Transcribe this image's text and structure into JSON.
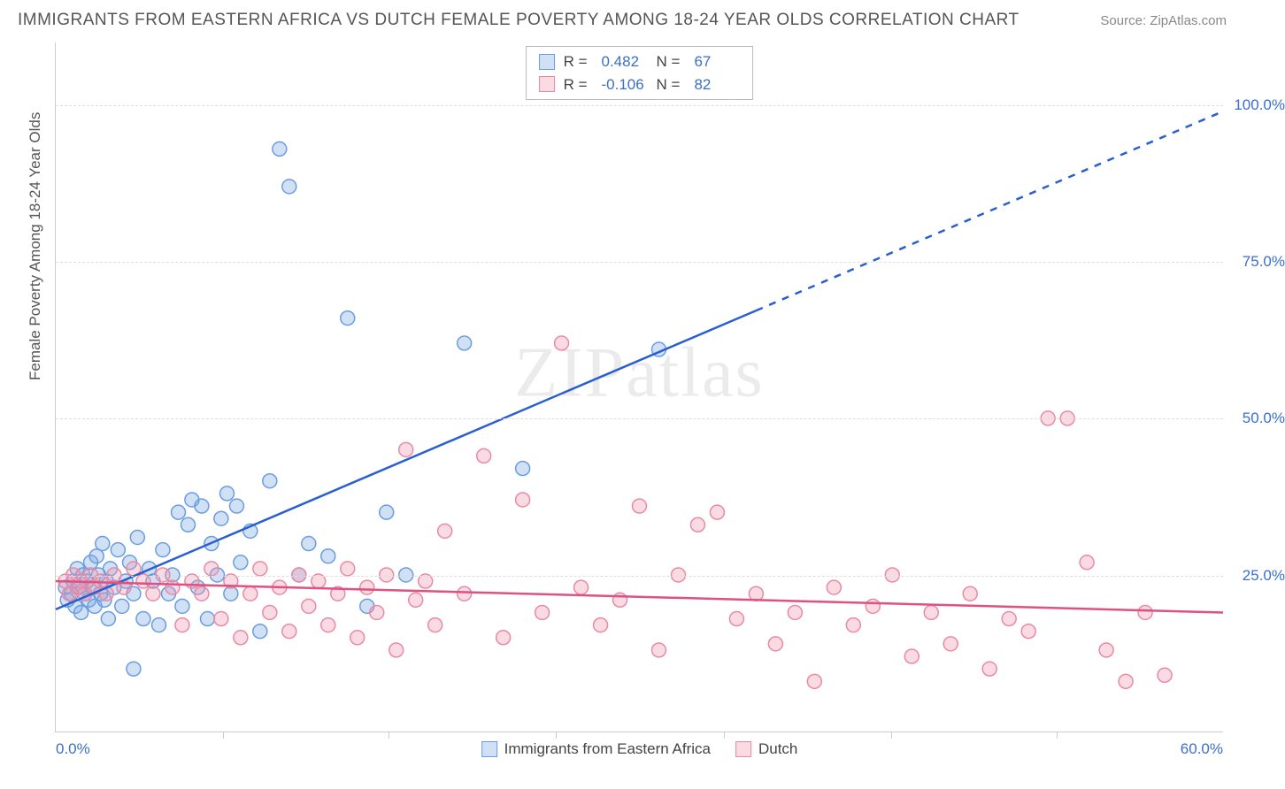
{
  "title": "IMMIGRANTS FROM EASTERN AFRICA VS DUTCH FEMALE POVERTY AMONG 18-24 YEAR OLDS CORRELATION CHART",
  "source_label": "Source: ",
  "source_name": "ZipAtlas.com",
  "y_axis_title": "Female Poverty Among 18-24 Year Olds",
  "watermark": "ZIPatlas",
  "chart": {
    "type": "scatter",
    "xlim": [
      0,
      60
    ],
    "ylim": [
      0,
      110
    ],
    "x_min_label": "0.0%",
    "x_max_label": "60.0%",
    "y_ticks": [
      25,
      50,
      75,
      100
    ],
    "y_tick_labels": [
      "25.0%",
      "50.0%",
      "75.0%",
      "100.0%"
    ],
    "x_tick_positions": [
      8.6,
      17.1,
      25.7,
      34.3,
      42.9,
      51.4
    ],
    "grid_color": "#dddddd",
    "background_color": "#ffffff",
    "axis_color": "#cccccc",
    "marker_radius": 8,
    "marker_stroke_width": 1.5,
    "line_width": 2.5,
    "series": [
      {
        "name": "Immigrants from Eastern Africa",
        "fill": "rgba(120,165,225,0.35)",
        "stroke": "#6a9de0",
        "line_color": "#2a5fd0",
        "R_label": "R =",
        "R": "0.482",
        "N_label": "N =",
        "N": "67",
        "trend": {
          "x1": 0,
          "y1": 19.5,
          "x2": 60,
          "y2": 99,
          "dash_after_x": 36
        },
        "points": [
          [
            0.5,
            23
          ],
          [
            0.6,
            21
          ],
          [
            0.8,
            22
          ],
          [
            0.9,
            24
          ],
          [
            1.0,
            20
          ],
          [
            1.1,
            26
          ],
          [
            1.2,
            23
          ],
          [
            1.3,
            19
          ],
          [
            1.4,
            25
          ],
          [
            1.5,
            22
          ],
          [
            1.6,
            24
          ],
          [
            1.7,
            21
          ],
          [
            1.8,
            27
          ],
          [
            1.9,
            23
          ],
          [
            2.0,
            20
          ],
          [
            2.1,
            28
          ],
          [
            2.2,
            25
          ],
          [
            2.3,
            22
          ],
          [
            2.4,
            30
          ],
          [
            2.5,
            21
          ],
          [
            2.6,
            24
          ],
          [
            2.7,
            18
          ],
          [
            2.8,
            26
          ],
          [
            3.0,
            23
          ],
          [
            3.2,
            29
          ],
          [
            3.4,
            20
          ],
          [
            3.6,
            24
          ],
          [
            3.8,
            27
          ],
          [
            4.0,
            22
          ],
          [
            4.2,
            31
          ],
          [
            4.5,
            18
          ],
          [
            4.8,
            26
          ],
          [
            5.0,
            24
          ],
          [
            5.3,
            17
          ],
          [
            5.5,
            29
          ],
          [
            5.8,
            22
          ],
          [
            6.0,
            25
          ],
          [
            6.3,
            35
          ],
          [
            6.5,
            20
          ],
          [
            6.8,
            33
          ],
          [
            7.0,
            37
          ],
          [
            7.3,
            23
          ],
          [
            7.5,
            36
          ],
          [
            7.8,
            18
          ],
          [
            8.0,
            30
          ],
          [
            8.3,
            25
          ],
          [
            8.5,
            34
          ],
          [
            8.8,
            38
          ],
          [
            9.0,
            22
          ],
          [
            9.3,
            36
          ],
          [
            9.5,
            27
          ],
          [
            10.0,
            32
          ],
          [
            10.5,
            16
          ],
          [
            11.0,
            40
          ],
          [
            11.5,
            93
          ],
          [
            12.0,
            87
          ],
          [
            12.5,
            25
          ],
          [
            13.0,
            30
          ],
          [
            14.0,
            28
          ],
          [
            15.0,
            66
          ],
          [
            16.0,
            20
          ],
          [
            17.0,
            35
          ],
          [
            18.0,
            25
          ],
          [
            21.0,
            62
          ],
          [
            24.0,
            42
          ],
          [
            31.0,
            61
          ],
          [
            4.0,
            10
          ]
        ]
      },
      {
        "name": "Dutch",
        "fill": "rgba(240,150,175,0.35)",
        "stroke": "#e88aa5",
        "line_color": "#e05080",
        "R_label": "R =",
        "R": "-0.106",
        "N_label": "N =",
        "N": "82",
        "trend": {
          "x1": 0,
          "y1": 24,
          "x2": 60,
          "y2": 19,
          "dash_after_x": 60
        },
        "points": [
          [
            0.5,
            24
          ],
          [
            0.7,
            22
          ],
          [
            0.9,
            25
          ],
          [
            1.1,
            23
          ],
          [
            1.3,
            24
          ],
          [
            1.5,
            22
          ],
          [
            1.8,
            25
          ],
          [
            2.0,
            23
          ],
          [
            2.3,
            24
          ],
          [
            2.6,
            22
          ],
          [
            3.0,
            25
          ],
          [
            3.5,
            23
          ],
          [
            4.0,
            26
          ],
          [
            4.5,
            24
          ],
          [
            5.0,
            22
          ],
          [
            5.5,
            25
          ],
          [
            6.0,
            23
          ],
          [
            6.5,
            17
          ],
          [
            7.0,
            24
          ],
          [
            7.5,
            22
          ],
          [
            8.0,
            26
          ],
          [
            8.5,
            18
          ],
          [
            9.0,
            24
          ],
          [
            9.5,
            15
          ],
          [
            10.0,
            22
          ],
          [
            10.5,
            26
          ],
          [
            11.0,
            19
          ],
          [
            11.5,
            23
          ],
          [
            12.0,
            16
          ],
          [
            12.5,
            25
          ],
          [
            13.0,
            20
          ],
          [
            13.5,
            24
          ],
          [
            14.0,
            17
          ],
          [
            14.5,
            22
          ],
          [
            15.0,
            26
          ],
          [
            15.5,
            15
          ],
          [
            16.0,
            23
          ],
          [
            16.5,
            19
          ],
          [
            17.0,
            25
          ],
          [
            17.5,
            13
          ],
          [
            18.0,
            45
          ],
          [
            18.5,
            21
          ],
          [
            19.0,
            24
          ],
          [
            19.5,
            17
          ],
          [
            20.0,
            32
          ],
          [
            21.0,
            22
          ],
          [
            22.0,
            44
          ],
          [
            23.0,
            15
          ],
          [
            24.0,
            37
          ],
          [
            25.0,
            19
          ],
          [
            26.0,
            62
          ],
          [
            27.0,
            23
          ],
          [
            28.0,
            17
          ],
          [
            29.0,
            21
          ],
          [
            30.0,
            36
          ],
          [
            31.0,
            13
          ],
          [
            32.0,
            25
          ],
          [
            33.0,
            33
          ],
          [
            34.0,
            35
          ],
          [
            35.0,
            18
          ],
          [
            36.0,
            22
          ],
          [
            37.0,
            14
          ],
          [
            38.0,
            19
          ],
          [
            39.0,
            8
          ],
          [
            40.0,
            23
          ],
          [
            41.0,
            17
          ],
          [
            42.0,
            20
          ],
          [
            43.0,
            25
          ],
          [
            44.0,
            12
          ],
          [
            45.0,
            19
          ],
          [
            46.0,
            14
          ],
          [
            47.0,
            22
          ],
          [
            48.0,
            10
          ],
          [
            49.0,
            18
          ],
          [
            50.0,
            16
          ],
          [
            51.0,
            50
          ],
          [
            52.0,
            50
          ],
          [
            53.0,
            27
          ],
          [
            54.0,
            13
          ],
          [
            55.0,
            8
          ],
          [
            56.0,
            19
          ],
          [
            57.0,
            9
          ]
        ]
      }
    ]
  }
}
